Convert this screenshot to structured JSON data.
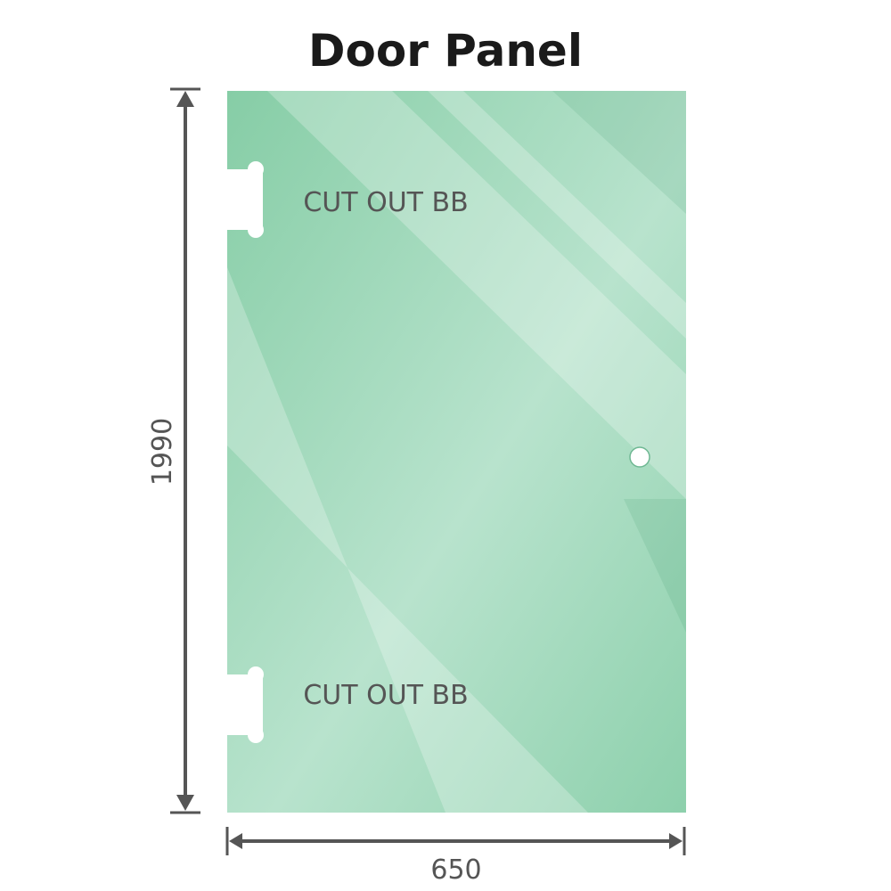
{
  "title": "Door Panel",
  "panel": {
    "height_label": "1990",
    "width_label": "650",
    "cutout_top_label": "CUT OUT BB",
    "cutout_bottom_label": "CUT OUT BB",
    "glass_color": "#8fd0ae",
    "dimension_color": "#555555"
  }
}
